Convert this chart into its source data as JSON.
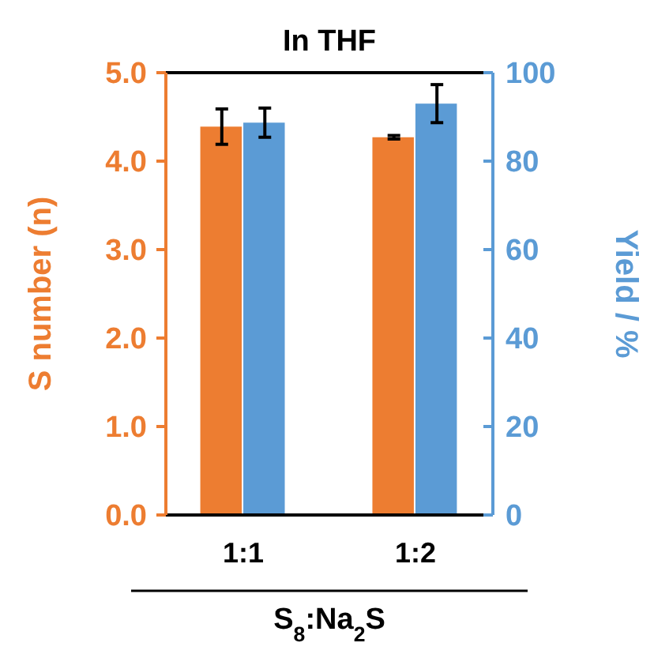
{
  "chart_data": {
    "type": "bar",
    "title": "In THF",
    "xlabel": "S$_{8}$:Na$_{2}$S",
    "ylabel": "S number (n)",
    "y2label": "Yield / %",
    "categories": [
      "1:1",
      "1:2"
    ],
    "series": [
      {
        "color": "#ed7d31",
        "values": [
          4.39,
          4.27
        ],
        "errors": [
          0.2,
          0.02
        ]
      },
      {
        "color": "#5b9bd5",
        "values": [
          88.7,
          93
        ],
        "errors": [
          3.3,
          4.3
        ],
        "axis": "y2"
      }
    ],
    "ylim": [
      0,
      5
    ],
    "yticks": [
      {
        "value": 0,
        "label": "0.0"
      },
      {
        "value": 1,
        "label": "1.0"
      },
      {
        "value": 2,
        "label": "2.0"
      },
      {
        "value": 3,
        "label": "3.0"
      },
      {
        "value": 4,
        "label": "4.0"
      },
      {
        "value": 5,
        "label": "5.0"
      }
    ],
    "y2lim": [
      0,
      100
    ],
    "y2ticks": [
      0,
      20,
      40,
      60,
      80,
      100
    ],
    "grid": false
  }
}
